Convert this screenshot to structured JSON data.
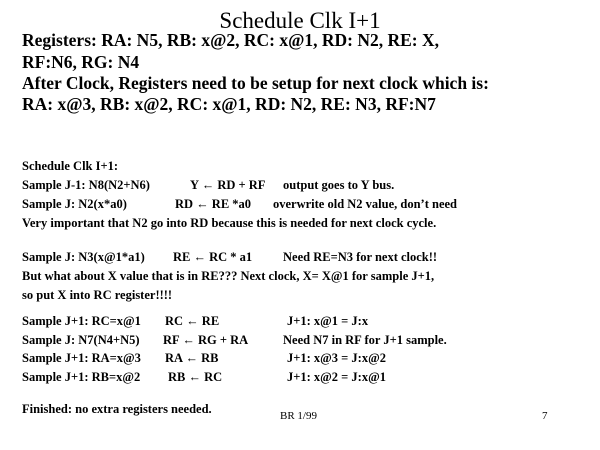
{
  "title": "Schedule Clk I+1",
  "header_lines": [
    "Registers:  RA: N5, RB: x@2, RC: x@1,  RD: N2, RE: X,",
    "RF:N6, RG: N4",
    "After Clock, Registers need to be setup for next clock which is:",
    "RA: x@3, RB: x@2, RC: x@1,  RD: N2, RE: N3, RF:N7"
  ],
  "block1": {
    "heading": "Schedule Clk I+1:",
    "rows": [
      [
        "Sample J-1: N8(N2+N6)",
        "Y ← RD + RF",
        "output goes to Y bus."
      ],
      [
        "Sample J: N2(x*a0)",
        "RD ←  RE *a0",
        "overwrite old N2 value, don’t need"
      ]
    ],
    "note": "Very important that N2 go into RD because this is needed for next clock cycle."
  },
  "block2": {
    "row": [
      "Sample J: N3(x@1*a1)",
      "RE ←  RC * a1",
      "Need RE=N3 for next clock!!"
    ],
    "note1": "But what about X value that is in RE???  Next clock, X= X@1 for sample J+1,",
    "note2": "so put X into RC register!!!!"
  },
  "block3": {
    "rows": [
      [
        "Sample J+1:  RC=x@1",
        "RC ← RE",
        "J+1: x@1 = J:x"
      ],
      [
        "Sample J: N7(N4+N5)",
        "RF ←  RG + RA",
        "Need N7 in RF for J+1 sample."
      ],
      [
        "Sample J+1:  RA=x@3",
        "RA ←  RB",
        "J+1: x@3 = J:x@2"
      ],
      [
        "Sample J+1:  RB=x@2",
        "RB ←  RC",
        "J+1: x@2 = J:x@1"
      ]
    ]
  },
  "finished": "Finished:  no extra registers needed.",
  "footer": {
    "author": "BR 1/99",
    "page": "7"
  }
}
